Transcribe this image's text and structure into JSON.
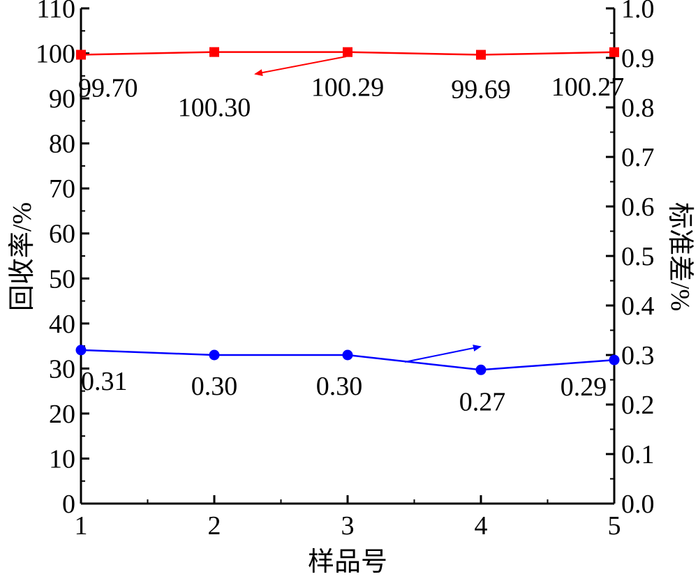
{
  "chart_data": {
    "type": "line",
    "title": "",
    "xlabel": "样品号",
    "ylabel_left": "回收率/%",
    "ylabel_right": "标准差/%",
    "x": [
      1,
      2,
      3,
      4,
      5
    ],
    "x_tick_labels": [
      "1",
      "2",
      "3",
      "4",
      "5"
    ],
    "xlim": [
      1,
      5
    ],
    "ylim_left": [
      0,
      110
    ],
    "ylim_right": [
      0.0,
      1.0
    ],
    "y_ticks_left": [
      "0",
      "10",
      "20",
      "30",
      "40",
      "50",
      "60",
      "70",
      "80",
      "90",
      "100",
      "110"
    ],
    "y_ticks_right": [
      "0.0",
      "0.1",
      "0.2",
      "0.3",
      "0.4",
      "0.5",
      "0.6",
      "0.7",
      "0.8",
      "0.9",
      "1.0"
    ],
    "grid": false,
    "series": [
      {
        "axis": "left",
        "marker": "square",
        "color": "#ff0000",
        "values": [
          99.7,
          100.3,
          100.29,
          99.69,
          100.27
        ],
        "labels": [
          "99.70",
          "100.30",
          "100.29",
          "99.69",
          "100.27"
        ]
      },
      {
        "axis": "right",
        "marker": "circle",
        "color": "#0000ff",
        "values": [
          0.31,
          0.3,
          0.3,
          0.27,
          0.29
        ],
        "labels": [
          "0.31",
          "0.30",
          "0.30",
          "0.27",
          "0.29"
        ]
      }
    ]
  }
}
